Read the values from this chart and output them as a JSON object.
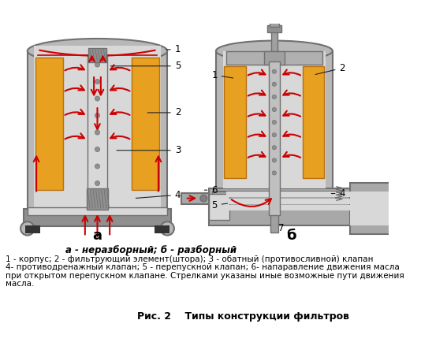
{
  "bg_color": "#ffffff",
  "title": "Рис. 2    Типы конструкции фильтров",
  "subtitle": "а - неразборный; б - разборный",
  "description_lines": [
    "1 - корпус; 2 - фильтрующий элемент(штора); 3 - обатный (противосливной) клапан",
    "4- противодренажный клапан; 5 - перепускной клапан; 6- напаравление движения масла",
    "при открытом перепускном клапане. Стрелками указаны иные возможные пути движения",
    "масла."
  ],
  "label_a": "а",
  "label_b": "б",
  "gray_body": "#b8b8b8",
  "gray_dark": "#707070",
  "gray_light": "#d8d8d8",
  "gray_inner": "#c8c8c8",
  "orange_filter": "#e8a020",
  "orange_dark": "#b87010",
  "red_arrow": "#cc0000",
  "black": "#000000",
  "white": "#ffffff"
}
